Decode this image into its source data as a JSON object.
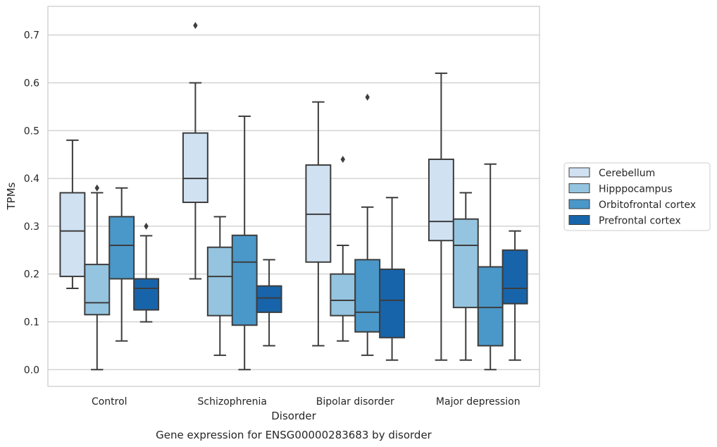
{
  "chart_data": {
    "type": "box",
    "title": "",
    "caption": "Gene expression for ENSG00000283683 by disorder",
    "xlabel": "Disorder",
    "ylabel": "TPMs",
    "ylim": [
      -0.035,
      0.76
    ],
    "yticks": [
      0.0,
      0.1,
      0.2,
      0.3,
      0.4,
      0.5,
      0.6,
      0.7
    ],
    "ytick_labels": [
      "0.0",
      "0.1",
      "0.2",
      "0.3",
      "0.4",
      "0.5",
      "0.6",
      "0.7"
    ],
    "grid": "horizontal",
    "legend_position": "right",
    "categories": [
      "Control",
      "Schizophrenia",
      "Bipolar disorder",
      "Major depression"
    ],
    "series": [
      {
        "name": "Cerebellum",
        "color": "#d0e1f2",
        "boxes": [
          {
            "whisker_low": 0.17,
            "q1": 0.195,
            "median": 0.29,
            "q3": 0.37,
            "whisker_high": 0.48,
            "outliers": []
          },
          {
            "whisker_low": 0.19,
            "q1": 0.35,
            "median": 0.4,
            "q3": 0.495,
            "whisker_high": 0.6,
            "outliers": [
              0.72
            ]
          },
          {
            "whisker_low": 0.05,
            "q1": 0.225,
            "median": 0.325,
            "q3": 0.428,
            "whisker_high": 0.56,
            "outliers": []
          },
          {
            "whisker_low": 0.02,
            "q1": 0.27,
            "median": 0.31,
            "q3": 0.44,
            "whisker_high": 0.62,
            "outliers": []
          }
        ]
      },
      {
        "name": "Hipppocampus",
        "color": "#94c4df",
        "boxes": [
          {
            "whisker_low": 0.0,
            "q1": 0.115,
            "median": 0.14,
            "q3": 0.22,
            "whisker_high": 0.37,
            "outliers": [
              0.38
            ]
          },
          {
            "whisker_low": 0.03,
            "q1": 0.113,
            "median": 0.195,
            "q3": 0.256,
            "whisker_high": 0.32,
            "outliers": []
          },
          {
            "whisker_low": 0.06,
            "q1": 0.113,
            "median": 0.145,
            "q3": 0.2,
            "whisker_high": 0.26,
            "outliers": [
              0.44
            ]
          },
          {
            "whisker_low": 0.02,
            "q1": 0.13,
            "median": 0.26,
            "q3": 0.315,
            "whisker_high": 0.37,
            "outliers": []
          }
        ]
      },
      {
        "name": "Orbitofrontal cortex",
        "color": "#4a98c9",
        "boxes": [
          {
            "whisker_low": 0.06,
            "q1": 0.19,
            "median": 0.26,
            "q3": 0.32,
            "whisker_high": 0.38,
            "outliers": []
          },
          {
            "whisker_low": 0.0,
            "q1": 0.093,
            "median": 0.225,
            "q3": 0.281,
            "whisker_high": 0.53,
            "outliers": []
          },
          {
            "whisker_low": 0.03,
            "q1": 0.079,
            "median": 0.12,
            "q3": 0.23,
            "whisker_high": 0.34,
            "outliers": [
              0.57
            ]
          },
          {
            "whisker_low": 0.0,
            "q1": 0.05,
            "median": 0.13,
            "q3": 0.215,
            "whisker_high": 0.43,
            "outliers": []
          }
        ]
      },
      {
        "name": "Prefrontal cortex",
        "color": "#1764ab",
        "boxes": [
          {
            "whisker_low": 0.1,
            "q1": 0.125,
            "median": 0.17,
            "q3": 0.19,
            "whisker_high": 0.28,
            "outliers": [
              0.3
            ]
          },
          {
            "whisker_low": 0.05,
            "q1": 0.12,
            "median": 0.15,
            "q3": 0.175,
            "whisker_high": 0.23,
            "outliers": []
          },
          {
            "whisker_low": 0.02,
            "q1": 0.067,
            "median": 0.145,
            "q3": 0.21,
            "whisker_high": 0.36,
            "outliers": []
          },
          {
            "whisker_low": 0.02,
            "q1": 0.138,
            "median": 0.17,
            "q3": 0.25,
            "whisker_high": 0.29,
            "outliers": []
          }
        ]
      }
    ]
  }
}
